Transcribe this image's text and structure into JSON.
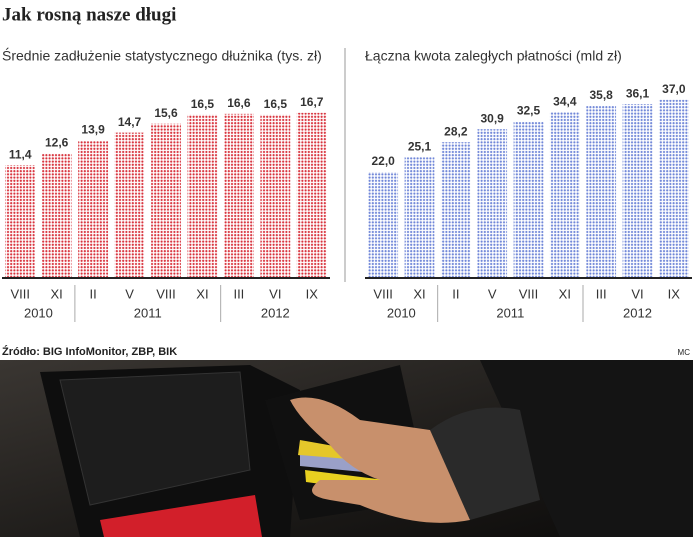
{
  "header": {
    "title": "Jak rosną nasze długi"
  },
  "footer": {
    "source": "Źródło: BIG InfoMonitor, ZBP, BIK",
    "credit": "MC"
  },
  "chart_data": [
    {
      "type": "bar",
      "title": "Średnie zadłużenie statystycznego dłużnika (tys. zł)",
      "categories": [
        "VIII",
        "XI",
        "II",
        "V",
        "VIII",
        "XI",
        "III",
        "VI",
        "IX"
      ],
      "values": [
        11.4,
        12.6,
        13.9,
        14.7,
        15.6,
        16.5,
        16.6,
        16.5,
        16.7
      ],
      "value_labels": [
        "11,4",
        "12,6",
        "13,9",
        "14,7",
        "15,6",
        "16,5",
        "16,6",
        "16,5",
        "16,7"
      ],
      "x_groups": [
        {
          "label": "2010",
          "count": 2
        },
        {
          "label": "2011",
          "count": 4
        },
        {
          "label": "2012",
          "count": 3
        }
      ],
      "color": "#d8323c",
      "ylim": [
        0,
        18
      ]
    },
    {
      "type": "bar",
      "title": "Łączna kwota zaległych płatności (mld zł)",
      "categories": [
        "VIII",
        "XI",
        "II",
        "V",
        "VIII",
        "XI",
        "III",
        "VI",
        "IX"
      ],
      "values": [
        22.0,
        25.1,
        28.2,
        30.9,
        32.5,
        34.4,
        35.8,
        36.1,
        37.0
      ],
      "value_labels": [
        "22,0",
        "25,1",
        "28,2",
        "30,9",
        "32,5",
        "34,4",
        "35,8",
        "36,1",
        "37,0"
      ],
      "x_groups": [
        {
          "label": "2010",
          "count": 2
        },
        {
          "label": "2011",
          "count": 4
        },
        {
          "label": "2012",
          "count": 3
        }
      ],
      "color": "#6f86d8",
      "ylim": [
        0,
        38
      ]
    }
  ]
}
